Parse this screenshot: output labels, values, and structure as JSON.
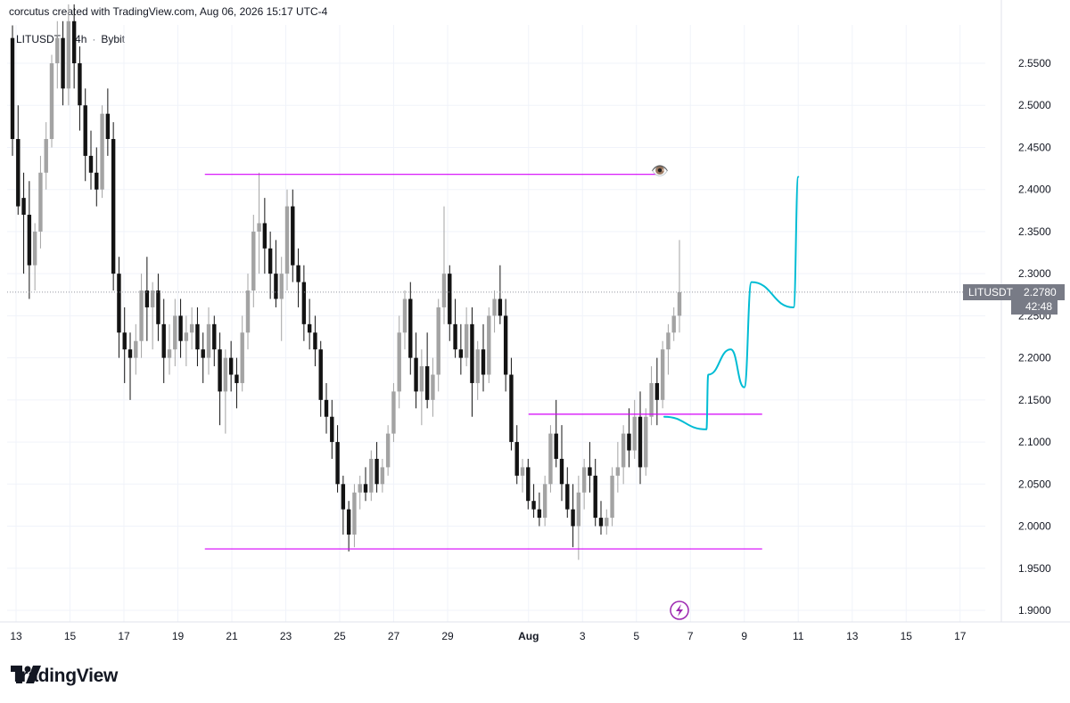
{
  "header": {
    "text": "corcutus created with TradingView.com, Aug 06, 2026 15:17 UTC-4"
  },
  "legend": {
    "symbol": "LITUSDT",
    "interval": "4h",
    "exchange": "Bybit"
  },
  "price_tag": {
    "symbol": "LITUSDT",
    "price": "2.2780",
    "countdown": "42:48"
  },
  "footer": {
    "brand": "TradingView"
  },
  "annotation": {
    "emoji": "👁️"
  },
  "colors": {
    "up_body": "#a3a3a3",
    "down_body": "#131313",
    "level_line": "#d500f9",
    "projection": "#00bcd4",
    "axis_text": "#131722",
    "grid": "#f0f3fa"
  },
  "chart_data": {
    "type": "candlestick",
    "ylim": [
      1.89,
      2.59
    ],
    "y_ticks": [
      "2.5500",
      "2.5000",
      "2.4500",
      "2.4000",
      "2.3500",
      "2.3000",
      "2.2500",
      "2.2000",
      "2.1500",
      "2.1000",
      "2.0500",
      "2.0000",
      "1.9500",
      "1.9000"
    ],
    "x_ticks": [
      "13",
      "15",
      "17",
      "19",
      "21",
      "23",
      "25",
      "27",
      "29",
      "Aug",
      "3",
      "5",
      "7",
      "9",
      "11",
      "13",
      "15",
      "17"
    ],
    "last_price": 2.278,
    "levels": [
      {
        "price": 2.418,
        "from": "Jul 20",
        "to": "Aug 6"
      },
      {
        "price": 2.133,
        "from": "Aug 1",
        "to": "Aug 9"
      },
      {
        "price": 1.973,
        "from": "Jul 20",
        "to": "Aug 9"
      }
    ],
    "projection_path": [
      {
        "date": "Aug 6",
        "price": 2.13
      },
      {
        "date": "Aug 7",
        "price": 2.115
      },
      {
        "date": "Aug 7",
        "price": 2.18
      },
      {
        "date": "Aug 8",
        "price": 2.21
      },
      {
        "date": "Aug 9",
        "price": 2.165
      },
      {
        "date": "Aug 9",
        "price": 2.29
      },
      {
        "date": "Aug 10",
        "price": 2.26
      },
      {
        "date": "Aug 11",
        "price": 2.415
      }
    ],
    "candles": [
      [
        2.58,
        2.595,
        2.44,
        2.46
      ],
      [
        2.46,
        2.5,
        2.37,
        2.38
      ],
      [
        2.39,
        2.42,
        2.3,
        2.37
      ],
      [
        2.37,
        2.41,
        2.27,
        2.31
      ],
      [
        2.31,
        2.36,
        2.28,
        2.35
      ],
      [
        2.35,
        2.44,
        2.33,
        2.42
      ],
      [
        2.42,
        2.48,
        2.4,
        2.46
      ],
      [
        2.46,
        2.56,
        2.45,
        2.55
      ],
      [
        2.55,
        2.6,
        2.52,
        2.58
      ],
      [
        2.58,
        2.6,
        2.5,
        2.52
      ],
      [
        2.52,
        2.62,
        2.5,
        2.6
      ],
      [
        2.6,
        2.62,
        2.52,
        2.55
      ],
      [
        2.55,
        2.57,
        2.47,
        2.5
      ],
      [
        2.5,
        2.52,
        2.41,
        2.44
      ],
      [
        2.44,
        2.47,
        2.4,
        2.42
      ],
      [
        2.42,
        2.45,
        2.38,
        2.4
      ],
      [
        2.4,
        2.5,
        2.39,
        2.49
      ],
      [
        2.49,
        2.52,
        2.44,
        2.46
      ],
      [
        2.46,
        2.48,
        2.28,
        2.3
      ],
      [
        2.3,
        2.32,
        2.2,
        2.23
      ],
      [
        2.23,
        2.26,
        2.17,
        2.21
      ],
      [
        2.21,
        2.23,
        2.15,
        2.2
      ],
      [
        2.2,
        2.24,
        2.18,
        2.22
      ],
      [
        2.22,
        2.3,
        2.2,
        2.28
      ],
      [
        2.28,
        2.32,
        2.22,
        2.26
      ],
      [
        2.26,
        2.29,
        2.21,
        2.28
      ],
      [
        2.28,
        2.3,
        2.22,
        2.24
      ],
      [
        2.24,
        2.27,
        2.17,
        2.2
      ],
      [
        2.2,
        2.24,
        2.18,
        2.21
      ],
      [
        2.21,
        2.27,
        2.19,
        2.25
      ],
      [
        2.25,
        2.27,
        2.2,
        2.22
      ],
      [
        2.22,
        2.25,
        2.19,
        2.23
      ],
      [
        2.23,
        2.26,
        2.21,
        2.24
      ],
      [
        2.24,
        2.26,
        2.19,
        2.21
      ],
      [
        2.21,
        2.23,
        2.17,
        2.2
      ],
      [
        2.2,
        2.26,
        2.18,
        2.24
      ],
      [
        2.24,
        2.25,
        2.19,
        2.21
      ],
      [
        2.21,
        2.23,
        2.12,
        2.16
      ],
      [
        2.16,
        2.21,
        2.11,
        2.2
      ],
      [
        2.2,
        2.22,
        2.16,
        2.18
      ],
      [
        2.18,
        2.2,
        2.14,
        2.17
      ],
      [
        2.17,
        2.25,
        2.16,
        2.23
      ],
      [
        2.23,
        2.3,
        2.21,
        2.28
      ],
      [
        2.28,
        2.37,
        2.26,
        2.35
      ],
      [
        2.35,
        2.42,
        2.3,
        2.36
      ],
      [
        2.36,
        2.39,
        2.3,
        2.33
      ],
      [
        2.33,
        2.35,
        2.27,
        2.3
      ],
      [
        2.3,
        2.34,
        2.26,
        2.27
      ],
      [
        2.27,
        2.32,
        2.22,
        2.3
      ],
      [
        2.3,
        2.4,
        2.28,
        2.38
      ],
      [
        2.38,
        2.4,
        2.29,
        2.31
      ],
      [
        2.31,
        2.33,
        2.26,
        2.29
      ],
      [
        2.29,
        2.31,
        2.22,
        2.24
      ],
      [
        2.24,
        2.27,
        2.21,
        2.23
      ],
      [
        2.23,
        2.25,
        2.19,
        2.21
      ],
      [
        2.21,
        2.22,
        2.13,
        2.15
      ],
      [
        2.15,
        2.17,
        2.11,
        2.13
      ],
      [
        2.13,
        2.15,
        2.08,
        2.1
      ],
      [
        2.1,
        2.12,
        2.04,
        2.05
      ],
      [
        2.05,
        2.06,
        1.99,
        2.02
      ],
      [
        2.02,
        2.03,
        1.97,
        1.99
      ],
      [
        1.99,
        2.05,
        1.975,
        2.04
      ],
      [
        2.04,
        2.06,
        2.02,
        2.05
      ],
      [
        2.05,
        2.07,
        2.03,
        2.04
      ],
      [
        2.04,
        2.09,
        2.03,
        2.08
      ],
      [
        2.08,
        2.1,
        2.04,
        2.05
      ],
      [
        2.05,
        2.08,
        2.04,
        2.07
      ],
      [
        2.07,
        2.12,
        2.06,
        2.11
      ],
      [
        2.11,
        2.17,
        2.1,
        2.16
      ],
      [
        2.16,
        2.25,
        2.14,
        2.23
      ],
      [
        2.23,
        2.28,
        2.21,
        2.27
      ],
      [
        2.27,
        2.29,
        2.18,
        2.2
      ],
      [
        2.2,
        2.23,
        2.14,
        2.16
      ],
      [
        2.16,
        2.21,
        2.12,
        2.19
      ],
      [
        2.19,
        2.23,
        2.14,
        2.15
      ],
      [
        2.15,
        2.2,
        2.13,
        2.18
      ],
      [
        2.18,
        2.27,
        2.16,
        2.26
      ],
      [
        2.26,
        2.38,
        2.24,
        2.3
      ],
      [
        2.3,
        2.31,
        2.22,
        2.24
      ],
      [
        2.24,
        2.27,
        2.2,
        2.21
      ],
      [
        2.21,
        2.24,
        2.18,
        2.2
      ],
      [
        2.2,
        2.26,
        2.19,
        2.24
      ],
      [
        2.24,
        2.26,
        2.13,
        2.17
      ],
      [
        2.17,
        2.22,
        2.15,
        2.21
      ],
      [
        2.21,
        2.24,
        2.16,
        2.18
      ],
      [
        2.18,
        2.26,
        2.17,
        2.25
      ],
      [
        2.25,
        2.28,
        2.23,
        2.27
      ],
      [
        2.27,
        2.31,
        2.24,
        2.25
      ],
      [
        2.25,
        2.27,
        2.16,
        2.18
      ],
      [
        2.18,
        2.2,
        2.09,
        2.1
      ],
      [
        2.1,
        2.12,
        2.05,
        2.06
      ],
      [
        2.06,
        2.08,
        2.04,
        2.07
      ],
      [
        2.07,
        2.08,
        2.02,
        2.03
      ],
      [
        2.03,
        2.05,
        2.01,
        2.02
      ],
      [
        2.02,
        2.04,
        2.0,
        2.01
      ],
      [
        2.01,
        2.06,
        2.0,
        2.05
      ],
      [
        2.05,
        2.12,
        2.04,
        2.11
      ],
      [
        2.11,
        2.15,
        2.07,
        2.08
      ],
      [
        2.08,
        2.12,
        2.03,
        2.05
      ],
      [
        2.05,
        2.07,
        2.01,
        2.02
      ],
      [
        2.02,
        2.05,
        1.975,
        2.0
      ],
      [
        2.0,
        2.06,
        1.96,
        2.04
      ],
      [
        2.04,
        2.08,
        2.02,
        2.07
      ],
      [
        2.07,
        2.1,
        2.04,
        2.06
      ],
      [
        2.06,
        2.08,
        2.0,
        2.01
      ],
      [
        2.01,
        2.03,
        1.99,
        2.0
      ],
      [
        2.0,
        2.02,
        1.99,
        2.01
      ],
      [
        2.01,
        2.07,
        2.0,
        2.06
      ],
      [
        2.06,
        2.1,
        2.04,
        2.07
      ],
      [
        2.07,
        2.12,
        2.05,
        2.11
      ],
      [
        2.11,
        2.14,
        2.07,
        2.09
      ],
      [
        2.09,
        2.15,
        2.08,
        2.13
      ],
      [
        2.13,
        2.16,
        2.05,
        2.07
      ],
      [
        2.07,
        2.14,
        2.06,
        2.13
      ],
      [
        2.13,
        2.19,
        2.12,
        2.17
      ],
      [
        2.17,
        2.2,
        2.12,
        2.15
      ],
      [
        2.15,
        2.22,
        2.14,
        2.21
      ],
      [
        2.21,
        2.24,
        2.18,
        2.23
      ],
      [
        2.23,
        2.26,
        2.22,
        2.25
      ],
      [
        2.25,
        2.34,
        2.23,
        2.278
      ]
    ]
  }
}
